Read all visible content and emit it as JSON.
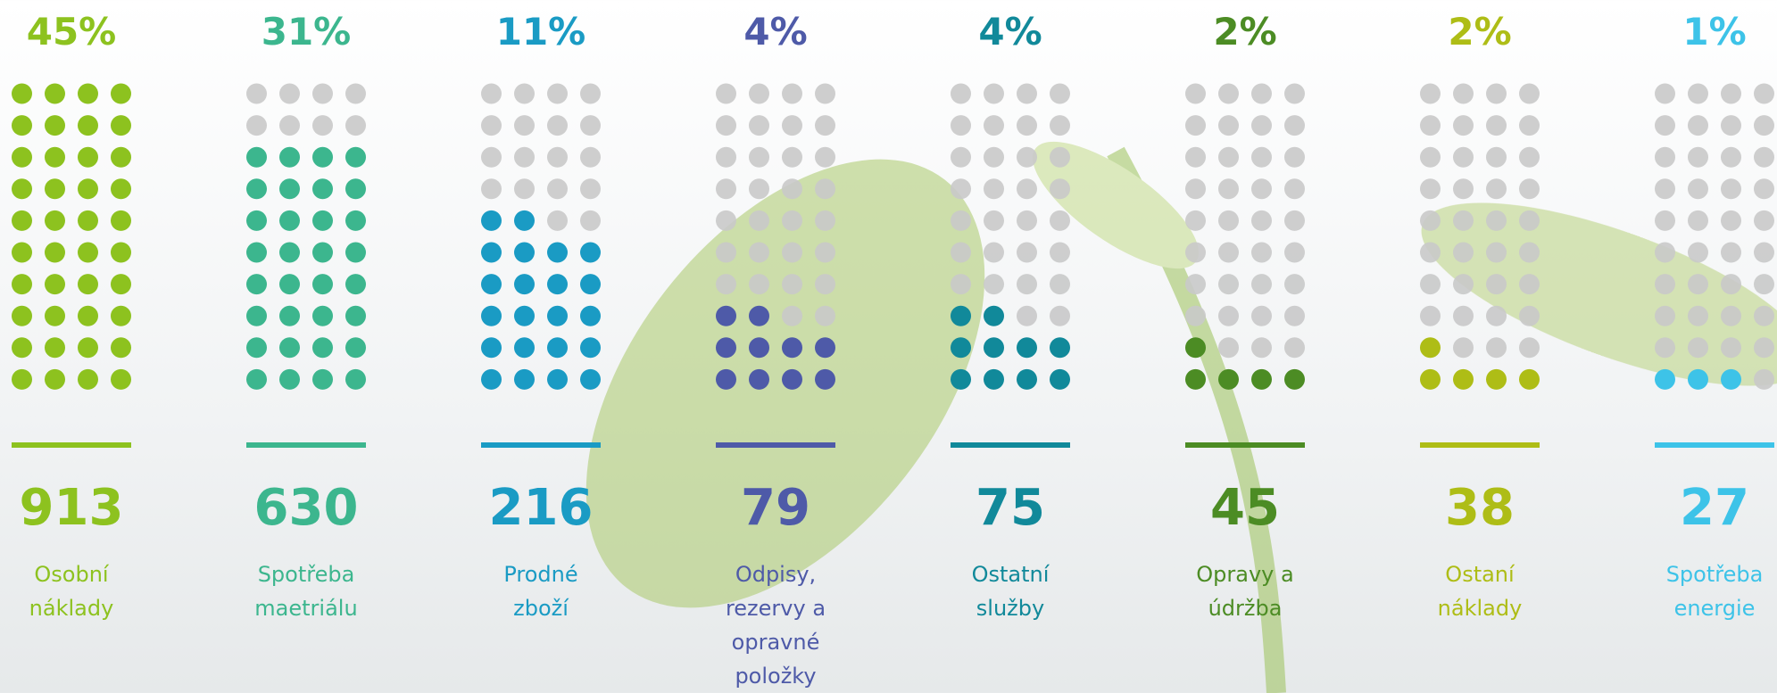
{
  "chart_data": {
    "type": "dot-columns",
    "categories": [
      "Osobní náklady",
      "Spotřeba maetriálu",
      "Prodné zboží",
      "Odpisy, rezervy a opravné položky",
      "Ostatní služby",
      "Opravy a údržba",
      "Ostaní náklady",
      "Spotřeba energie"
    ],
    "values": [
      45,
      31,
      11,
      4,
      4,
      2,
      2,
      1
    ],
    "value_labels": [
      "45%",
      "31%",
      "11%",
      "4%",
      "4%",
      "2%",
      "2%",
      "1%"
    ],
    "amounts": [
      913,
      630,
      216,
      79,
      75,
      45,
      38,
      27
    ],
    "filled_dots": [
      40,
      32,
      22,
      10,
      10,
      5,
      5,
      3
    ],
    "colors": [
      "#8dc21f",
      "#3cb68e",
      "#1a9bc4",
      "#4e5aa8",
      "#11899a",
      "#4c8c24",
      "#aebd16",
      "#3dc3e8"
    ]
  }
}
